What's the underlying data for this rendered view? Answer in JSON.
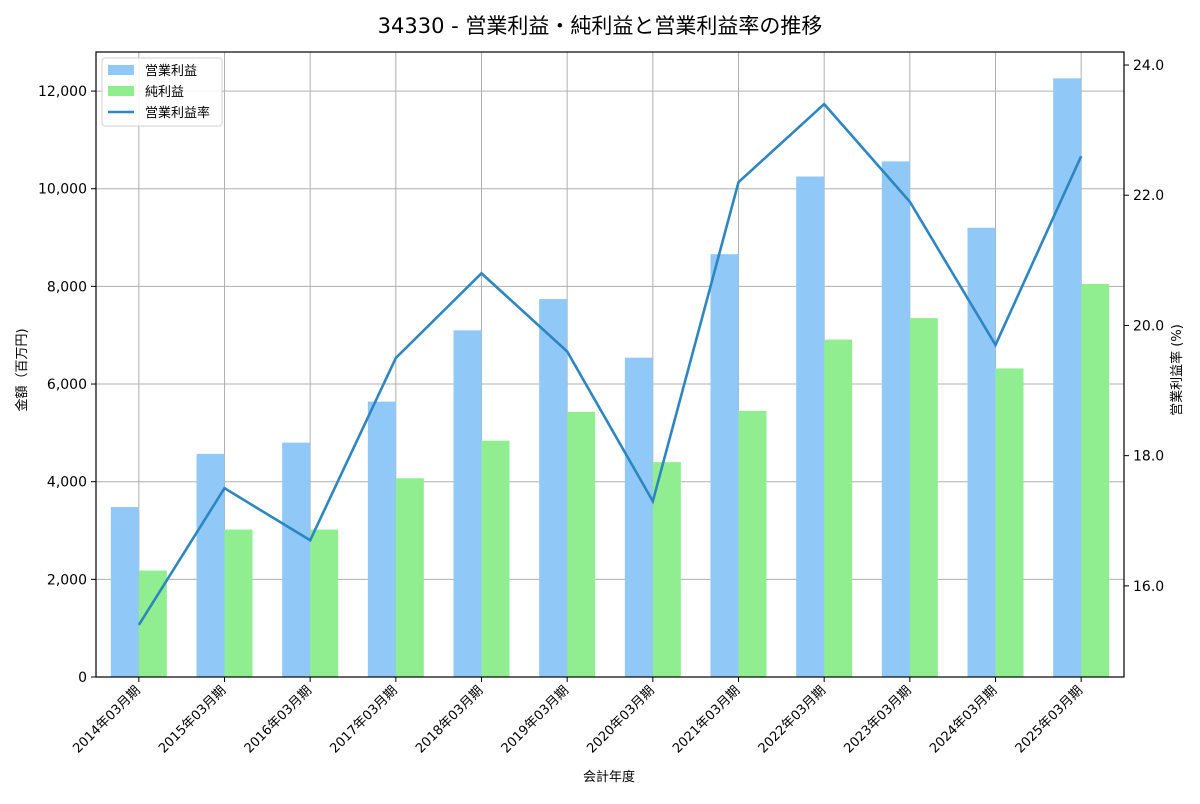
{
  "chart_data": {
    "type": "bar",
    "title": "34330 - 営業利益・純利益と営業利益率の推移",
    "xlabel": "会計年度",
    "ylabel": "金額（百万円)",
    "y2label": "営業利益率 (%)",
    "ylim": [
      0,
      12800
    ],
    "y2lim": [
      14.6,
      24.2
    ],
    "yticks": [
      "0",
      "2,000",
      "4,000",
      "6,000",
      "8,000",
      "10,000",
      "12,000"
    ],
    "y2ticks": [
      "16.0",
      "18.0",
      "20.0",
      "22.0",
      "24.0"
    ],
    "grid": true,
    "legend_position": "upper left",
    "categories": [
      "2014年03月期",
      "2015年03月期",
      "2016年03月期",
      "2017年03月期",
      "2018年03月期",
      "2019年03月期",
      "2020年03月期",
      "2021年03月期",
      "2022年03月期",
      "2023年03月期",
      "2024年03月期",
      "2025年03月期"
    ],
    "series": [
      {
        "name": "営業利益",
        "type": "bar",
        "axis": "left",
        "color": "#90c9f7",
        "values": [
          3480,
          4570,
          4800,
          5640,
          7100,
          7740,
          6540,
          8660,
          10250,
          10560,
          9200,
          12260
        ]
      },
      {
        "name": "純利益",
        "type": "bar",
        "axis": "left",
        "color": "#90ee90",
        "values": [
          2180,
          3020,
          3020,
          4070,
          4840,
          5430,
          4400,
          5450,
          6910,
          7350,
          6320,
          8050
        ]
      },
      {
        "name": "営業利益率",
        "type": "line",
        "axis": "right",
        "color": "#2e86c1",
        "values": [
          15.4,
          17.5,
          16.7,
          19.5,
          20.8,
          19.6,
          17.3,
          22.2,
          23.4,
          21.9,
          19.7,
          22.6
        ]
      }
    ]
  }
}
